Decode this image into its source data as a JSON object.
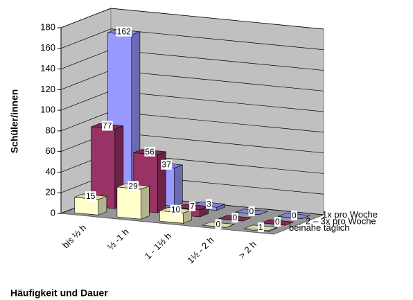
{
  "chart_data": {
    "type": "bar3d",
    "y_label": "Schüler/innen",
    "x_label": "Häufigkeit und Dauer",
    "categories": [
      "bis ½ h",
      "½ -1 h",
      "1 - 1½ h",
      "1½ - 2 h",
      "> 2 h"
    ],
    "series": [
      {
        "name": "1x pro Woche",
        "color": "#9999ff",
        "values": [
          162,
          37,
          3,
          0,
          0
        ]
      },
      {
        "name": "2 – 3x pro Woche",
        "color": "#993366",
        "values": [
          77,
          56,
          7,
          0,
          0
        ]
      },
      {
        "name": "beinahe täglich",
        "color": "#ffffcc",
        "values": [
          15,
          29,
          10,
          0,
          1
        ]
      }
    ],
    "ylim": [
      0,
      180
    ],
    "yticks": [
      0,
      20,
      40,
      60,
      80,
      100,
      120,
      140,
      160,
      180
    ],
    "grid": true
  }
}
